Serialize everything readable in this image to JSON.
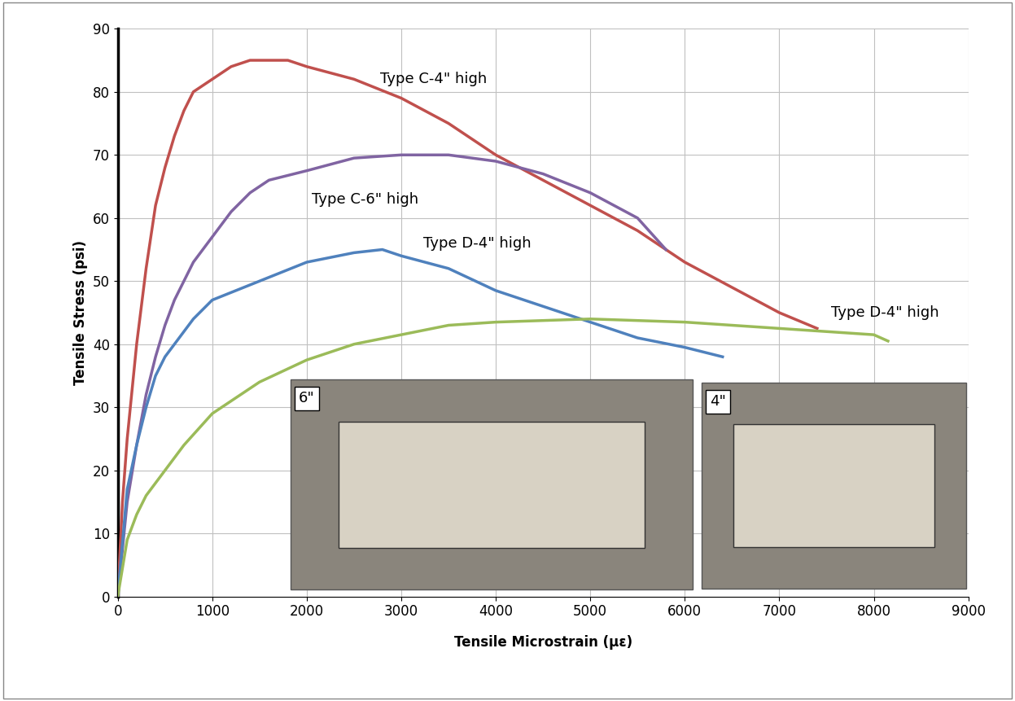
{
  "chart_data": {
    "type": "line",
    "x_label": "Tensile Microstrain (με)",
    "y_label": "Tensile Stress (psi)",
    "xlim": [
      0,
      9000
    ],
    "xticks": [
      0,
      1000,
      2000,
      3000,
      4000,
      5000,
      6000,
      7000,
      8000,
      9000
    ],
    "ylim": [
      0,
      90
    ],
    "yticks": [
      0,
      10,
      20,
      30,
      40,
      50,
      60,
      70,
      80,
      90
    ],
    "grid": true,
    "photo_labels": [
      "6\"",
      "4\""
    ],
    "series": [
      {
        "name": "Type C-4\" high",
        "color": "#c0504d",
        "x": [
          0,
          50,
          100,
          200,
          300,
          400,
          500,
          600,
          700,
          800,
          900,
          1000,
          1200,
          1400,
          1600,
          1800,
          2000,
          2500,
          3000,
          3500,
          4000,
          4500,
          5000,
          5500,
          6000,
          6500,
          7000,
          7400
        ],
        "values": [
          0,
          15,
          25,
          40,
          52,
          62,
          68,
          73,
          77,
          80,
          81,
          82,
          84,
          85,
          85,
          85,
          84,
          82,
          79,
          75,
          70,
          66,
          62,
          58,
          53,
          49,
          45,
          42.5
        ]
      },
      {
        "name": "Type C-6\" high",
        "color": "#8064a2",
        "x": [
          0,
          100,
          200,
          300,
          400,
          500,
          600,
          700,
          800,
          1000,
          1200,
          1400,
          1600,
          2000,
          2500,
          3000,
          3500,
          4000,
          4500,
          5000,
          5500,
          5800
        ],
        "values": [
          0,
          15,
          24,
          32,
          38,
          43,
          47,
          50,
          53,
          57,
          61,
          64,
          66,
          67.5,
          69.5,
          70,
          70,
          69,
          67,
          64,
          60,
          55
        ]
      },
      {
        "name": "Type D-4\" high",
        "color": "#4f81bd",
        "x": [
          0,
          100,
          200,
          300,
          400,
          500,
          600,
          800,
          1000,
          1500,
          2000,
          2500,
          2800,
          3000,
          3500,
          4000,
          4500,
          5000,
          5500,
          6000,
          6400
        ],
        "values": [
          0,
          17,
          24,
          30,
          35,
          38,
          40,
          44,
          47,
          50,
          53,
          54.5,
          55,
          54,
          52,
          48.5,
          46,
          43.5,
          41,
          39.5,
          38
        ]
      },
      {
        "name": "Type D-4\" high",
        "color": "#9bbb59",
        "x": [
          0,
          100,
          200,
          300,
          500,
          700,
          1000,
          1500,
          2000,
          2500,
          3000,
          3500,
          4000,
          5000,
          6000,
          7000,
          7500,
          8000,
          8150
        ],
        "values": [
          0,
          9,
          13,
          16,
          20,
          24,
          29,
          34,
          37.5,
          40,
          41.5,
          43,
          43.5,
          44,
          43.5,
          42.5,
          42,
          41.5,
          40.5
        ]
      }
    ]
  }
}
